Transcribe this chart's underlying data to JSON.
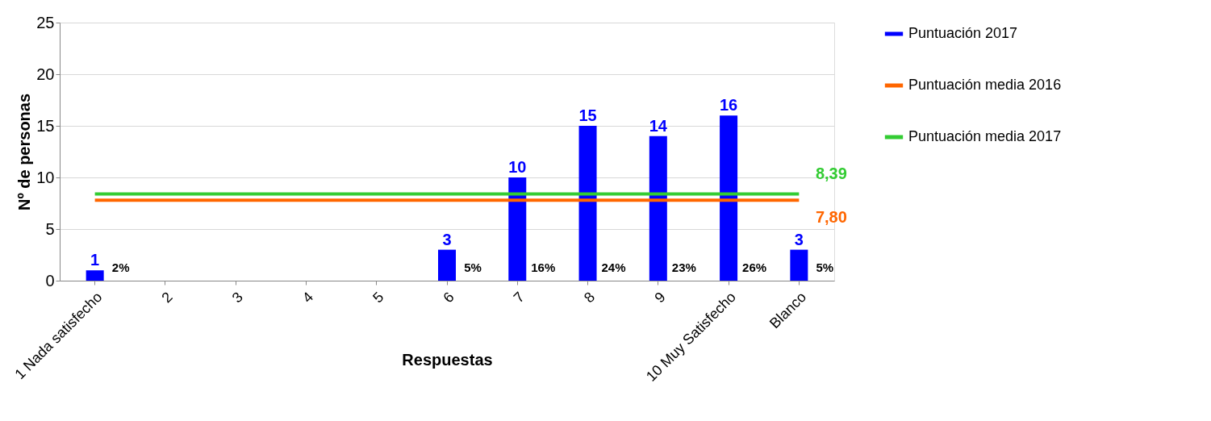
{
  "chart_data": {
    "type": "bar",
    "xlabel": "Respuestas",
    "ylabel": "Nº de personas",
    "categories": [
      "1 Nada satisfecho",
      "2",
      "3",
      "4",
      "5",
      "6",
      "7",
      "8",
      "9",
      "10 Muy Satisfecho",
      "Blanco"
    ],
    "series": [
      {
        "name": "Puntuación 2017",
        "color": "#0000ff",
        "values": [
          1,
          0,
          0,
          0,
          0,
          3,
          10,
          15,
          14,
          16,
          3
        ],
        "value_labels": [
          "1",
          null,
          null,
          null,
          null,
          "3",
          "10",
          "15",
          "14",
          "16",
          "3"
        ]
      },
      {
        "name": "Puntuación media  2016",
        "type": "line",
        "color": "#ff6600",
        "values": [
          7.8,
          7.8,
          7.8,
          7.8,
          7.8,
          7.8,
          7.8,
          7.8,
          7.8,
          7.8,
          7.8
        ],
        "value_labels": [
          null,
          null,
          null,
          null,
          null,
          null,
          null,
          null,
          null,
          null,
          "7,80"
        ]
      },
      {
        "name": "Puntuación media 2017",
        "type": "line",
        "color": "#33cc33",
        "values": [
          8.39,
          8.39,
          8.39,
          8.39,
          8.39,
          8.39,
          8.39,
          8.39,
          8.39,
          8.39,
          8.39
        ],
        "value_labels": [
          null,
          null,
          null,
          null,
          null,
          null,
          null,
          null,
          null,
          null,
          "8,39"
        ]
      }
    ],
    "annotations": [
      {
        "text": "2%",
        "x": "1 Nada satisfecho",
        "y": 0
      },
      {
        "text": "5%",
        "x": "6",
        "y": 0
      },
      {
        "text": "16%",
        "x": "7",
        "y": 0
      },
      {
        "text": "24%",
        "x": "8",
        "y": 0
      },
      {
        "text": "23%",
        "x": "9",
        "y": 0
      },
      {
        "text": "26%",
        "x": "10 Muy Satisfecho",
        "y": 0
      },
      {
        "text": "5%",
        "x": "Blanco",
        "y": 0
      }
    ],
    "ylim": [
      0,
      25
    ],
    "yticks": [
      0,
      5,
      10,
      15,
      20,
      25
    ],
    "grid": "y",
    "legend": "right",
    "line_style": "solid",
    "marker": "none"
  }
}
